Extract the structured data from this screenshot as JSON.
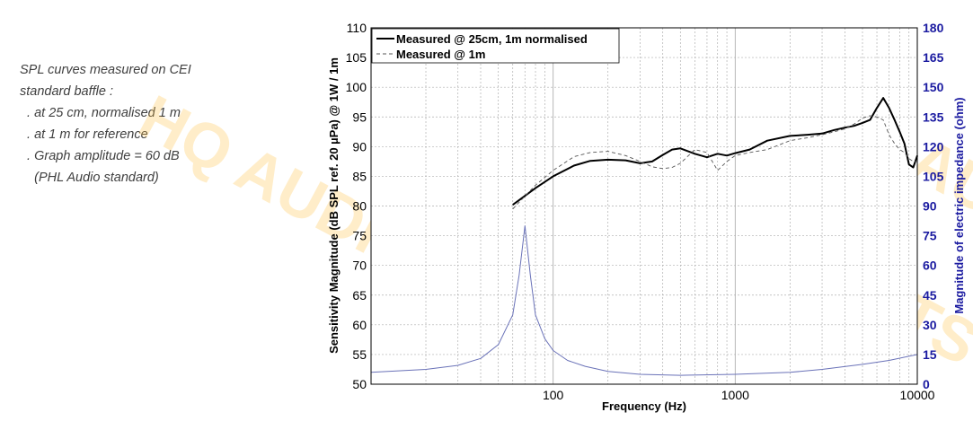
{
  "notes": {
    "lines": [
      "SPL curves measured on CEI",
      "standard baffle :",
      "  . at 25 cm, normalised 1 m",
      "  . at 1 m for reference",
      "  . Graph amplitude = 60 dB",
      "    (PHL Audio standard)"
    ]
  },
  "watermark": {
    "text": "HQ AUDIOPARTS"
  },
  "colors": {
    "spl_25cm": "#000000",
    "spl_1m": "#555555",
    "impedance": "#6a72b8",
    "right_axis": "#1a1aa0",
    "grid": "#b0b0b0"
  },
  "chart_data": {
    "type": "line",
    "xscale": "log",
    "xlabel": "Frequency (Hz)",
    "ylabel": "Sensitivity Magnitude (dB SPL ref. 20 µPa) @ 1W / 1m",
    "y2label": "Magnitude of electric impedance (ohm)",
    "xlim": [
      10,
      10000
    ],
    "ylim": [
      50,
      110
    ],
    "y2lim": [
      0,
      180
    ],
    "xticks": [
      100,
      1000,
      10000
    ],
    "xtick_labels": [
      "100",
      "1000",
      "10000"
    ],
    "yticks": [
      50,
      55,
      60,
      65,
      70,
      75,
      80,
      85,
      90,
      95,
      100,
      105,
      110
    ],
    "y2ticks": [
      0,
      15,
      30,
      45,
      60,
      75,
      90,
      105,
      120,
      135,
      150,
      165,
      180
    ],
    "grid": true,
    "legend": "top-left",
    "series": [
      {
        "name": "Measured @ 25cm, 1m normalised",
        "axis": "left",
        "style": "solid",
        "x": [
          60,
          80,
          100,
          130,
          160,
          200,
          250,
          300,
          350,
          400,
          450,
          500,
          600,
          700,
          800,
          900,
          1000,
          1200,
          1500,
          2000,
          2500,
          3000,
          3500,
          4000,
          4500,
          5000,
          5500,
          6000,
          6500,
          7000,
          7500,
          8000,
          8500,
          9000,
          9500,
          10000
        ],
        "values": [
          80.2,
          83.0,
          85.0,
          86.8,
          87.6,
          87.8,
          87.7,
          87.2,
          87.5,
          88.6,
          89.5,
          89.7,
          88.8,
          88.2,
          88.8,
          88.5,
          88.9,
          89.5,
          91.0,
          91.8,
          92.0,
          92.2,
          92.8,
          93.2,
          93.5,
          94.0,
          94.5,
          96.5,
          98.2,
          96.5,
          94.5,
          92.5,
          90.5,
          87.0,
          86.5,
          88.5
        ]
      },
      {
        "name": "Measured @ 1m",
        "axis": "left",
        "style": "dashed",
        "x": [
          60,
          80,
          100,
          130,
          160,
          200,
          250,
          300,
          350,
          400,
          450,
          500,
          600,
          700,
          800,
          900,
          1000,
          1200,
          1500,
          2000,
          2500,
          3000,
          3500,
          4000,
          4500,
          5000,
          5500,
          6000,
          6500,
          7000,
          7500,
          8000,
          8500,
          9000,
          9500,
          10000
        ],
        "values": [
          79.5,
          83.5,
          86.0,
          88.3,
          89.0,
          89.2,
          88.5,
          87.5,
          86.6,
          86.3,
          86.5,
          87.2,
          89.5,
          89.0,
          86.0,
          87.5,
          88.5,
          89.0,
          89.5,
          91.0,
          91.5,
          92.0,
          92.5,
          93.0,
          93.8,
          94.8,
          95.2,
          95.0,
          94.5,
          92.0,
          90.5,
          89.5,
          89.0,
          88.0,
          87.5,
          87.5
        ]
      },
      {
        "name": "",
        "axis": "right",
        "style": "solid",
        "x": [
          10,
          20,
          30,
          40,
          50,
          60,
          65,
          70,
          75,
          80,
          90,
          100,
          120,
          150,
          200,
          300,
          500,
          1000,
          2000,
          3000,
          5000,
          7000,
          10000
        ],
        "values": [
          6,
          7.5,
          9.5,
          13,
          20,
          35,
          55,
          80,
          55,
          35,
          23,
          17,
          12,
          9,
          6.5,
          5,
          4.5,
          5,
          6,
          7.5,
          10,
          12,
          15
        ]
      }
    ]
  }
}
